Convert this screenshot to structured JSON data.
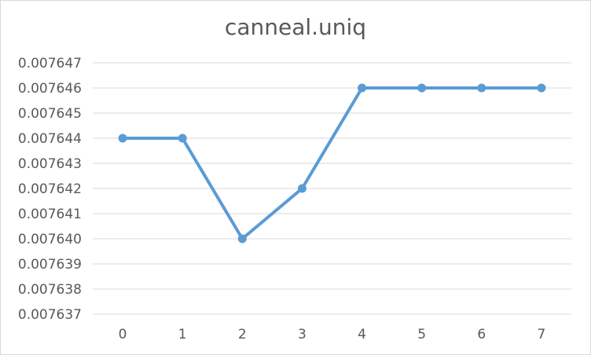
{
  "chart_data": {
    "type": "line",
    "title": "canneal.uniq",
    "xlabel": "",
    "ylabel": "",
    "categories": [
      "0",
      "1",
      "2",
      "3",
      "4",
      "5",
      "6",
      "7"
    ],
    "series": [
      {
        "values": [
          0.007644,
          0.007644,
          0.00764,
          0.007642,
          0.007646,
          0.007646,
          0.007646,
          0.007646
        ]
      }
    ],
    "ylim": [
      0.007637,
      0.007647
    ],
    "yticks": [
      "0.007637",
      "0.007638",
      "0.007639",
      "0.007640",
      "0.007641",
      "0.007642",
      "0.007643",
      "0.007644",
      "0.007645",
      "0.007646",
      "0.007647"
    ],
    "grid": true,
    "legend": "none",
    "colors": {
      "series": "#5b9bd5",
      "grid": "#d9d9d9",
      "text": "#595959"
    }
  }
}
